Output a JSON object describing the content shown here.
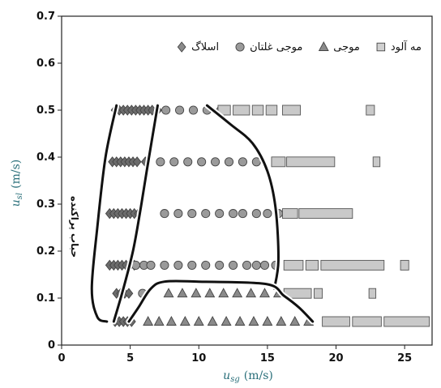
{
  "chart_data": {
    "type": "scatter",
    "title": "",
    "xlabel": "u_sg (m/s)",
    "ylabel": "u_sl (m/s)",
    "xlabel_parts": {
      "sym": "u",
      "sub": "sg",
      "unit": "(m/s)"
    },
    "ylabel_parts": {
      "sym": "u",
      "sub": "sl",
      "unit": "(m/s)"
    },
    "xlim": [
      0,
      27
    ],
    "ylim": [
      0,
      0.7
    ],
    "xticks": [
      0,
      5,
      10,
      15,
      20,
      25
    ],
    "yticks": [
      0,
      0.1,
      0.2,
      0.3,
      0.4,
      0.5,
      0.6,
      0.7
    ],
    "ytick_labels": [
      "0",
      "0.1",
      "0.2",
      "0.3",
      "0.4",
      "0.5",
      "0.6",
      "0.7"
    ],
    "grid": false,
    "legend_position": "top",
    "series": [
      {
        "name": "اسلاگ",
        "marker": "diamond",
        "color": "#6b6b6b",
        "points": [
          [
            3.9,
            0.05
          ],
          [
            4.2,
            0.05
          ],
          [
            4.5,
            0.05
          ],
          [
            4.8,
            0.05
          ],
          [
            5.1,
            0.05
          ],
          [
            4.0,
            0.11
          ],
          [
            4.3,
            0.11
          ],
          [
            4.6,
            0.11
          ],
          [
            4.9,
            0.11
          ],
          [
            3.5,
            0.17
          ],
          [
            3.8,
            0.17
          ],
          [
            4.1,
            0.17
          ],
          [
            4.4,
            0.17
          ],
          [
            4.7,
            0.17
          ],
          [
            5.0,
            0.17
          ],
          [
            5.3,
            0.17
          ],
          [
            3.5,
            0.28
          ],
          [
            3.8,
            0.28
          ],
          [
            4.1,
            0.28
          ],
          [
            4.4,
            0.28
          ],
          [
            4.7,
            0.28
          ],
          [
            5.0,
            0.28
          ],
          [
            5.3,
            0.28
          ],
          [
            5.6,
            0.28
          ],
          [
            3.7,
            0.39
          ],
          [
            4.0,
            0.39
          ],
          [
            4.3,
            0.39
          ],
          [
            4.6,
            0.39
          ],
          [
            4.9,
            0.39
          ],
          [
            5.2,
            0.39
          ],
          [
            5.5,
            0.39
          ],
          [
            6.1,
            0.39
          ],
          [
            3.9,
            0.5
          ],
          [
            4.2,
            0.5
          ],
          [
            4.5,
            0.5
          ],
          [
            4.8,
            0.5
          ],
          [
            5.1,
            0.5
          ],
          [
            5.4,
            0.5
          ],
          [
            5.7,
            0.5
          ],
          [
            6.0,
            0.5
          ],
          [
            6.3,
            0.5
          ],
          [
            6.6,
            0.5
          ],
          [
            7.0,
            0.5
          ]
        ]
      },
      {
        "name": "موجی غلتان",
        "marker": "circle",
        "color": "#9a9a9a",
        "points": [
          [
            5.9,
            0.11
          ],
          [
            5.4,
            0.17
          ],
          [
            6.0,
            0.17
          ],
          [
            6.5,
            0.17
          ],
          [
            7.5,
            0.17
          ],
          [
            8.5,
            0.17
          ],
          [
            9.5,
            0.17
          ],
          [
            10.5,
            0.17
          ],
          [
            11.5,
            0.17
          ],
          [
            12.5,
            0.17
          ],
          [
            13.5,
            0.17
          ],
          [
            14.2,
            0.17
          ],
          [
            14.8,
            0.17
          ],
          [
            15.6,
            0.17
          ],
          [
            7.5,
            0.28
          ],
          [
            8.5,
            0.28
          ],
          [
            9.5,
            0.28
          ],
          [
            10.5,
            0.28
          ],
          [
            11.5,
            0.28
          ],
          [
            12.5,
            0.28
          ],
          [
            13.2,
            0.28
          ],
          [
            14.2,
            0.28
          ],
          [
            15.0,
            0.28
          ],
          [
            15.8,
            0.28
          ],
          [
            7.2,
            0.39
          ],
          [
            8.2,
            0.39
          ],
          [
            9.2,
            0.39
          ],
          [
            10.2,
            0.39
          ],
          [
            11.2,
            0.39
          ],
          [
            12.2,
            0.39
          ],
          [
            13.2,
            0.39
          ],
          [
            14.2,
            0.39
          ],
          [
            7.6,
            0.5
          ],
          [
            8.6,
            0.5
          ],
          [
            9.6,
            0.5
          ],
          [
            10.6,
            0.5
          ],
          [
            11.6,
            0.5
          ]
        ]
      },
      {
        "name": "موجی",
        "marker": "triangle",
        "color": "#8a8a8a",
        "points": [
          [
            6.3,
            0.05
          ],
          [
            7.1,
            0.05
          ],
          [
            8.0,
            0.05
          ],
          [
            9.0,
            0.05
          ],
          [
            10.0,
            0.05
          ],
          [
            11.0,
            0.05
          ],
          [
            12.0,
            0.05
          ],
          [
            13.0,
            0.05
          ],
          [
            14.0,
            0.05
          ],
          [
            15.0,
            0.05
          ],
          [
            16.0,
            0.05
          ],
          [
            17.0,
            0.05
          ],
          [
            18.0,
            0.05
          ],
          [
            7.8,
            0.11
          ],
          [
            8.8,
            0.11
          ],
          [
            9.8,
            0.11
          ],
          [
            10.8,
            0.11
          ],
          [
            11.8,
            0.11
          ],
          [
            12.8,
            0.11
          ],
          [
            13.8,
            0.11
          ],
          [
            14.8,
            0.11
          ],
          [
            15.8,
            0.11
          ]
        ]
      },
      {
        "name": "مه آلود",
        "marker": "bar",
        "color": "#c9c9c9",
        "segments": [
          [
            19.0,
            21.0,
            0.05
          ],
          [
            21.2,
            23.3,
            0.05
          ],
          [
            23.5,
            26.8,
            0.05
          ],
          [
            16.2,
            18.2,
            0.11
          ],
          [
            18.4,
            19.0,
            0.11
          ],
          [
            22.4,
            22.9,
            0.11
          ],
          [
            16.2,
            17.6,
            0.17
          ],
          [
            17.8,
            18.7,
            0.17
          ],
          [
            18.9,
            23.5,
            0.17
          ],
          [
            24.7,
            25.3,
            0.17
          ],
          [
            16.1,
            17.2,
            0.28
          ],
          [
            17.3,
            21.2,
            0.28
          ],
          [
            15.3,
            16.3,
            0.39
          ],
          [
            16.4,
            19.9,
            0.39
          ],
          [
            22.7,
            23.2,
            0.39
          ],
          [
            11.4,
            12.3,
            0.5
          ],
          [
            12.5,
            13.7,
            0.5
          ],
          [
            13.9,
            14.7,
            0.5
          ],
          [
            14.9,
            15.7,
            0.5
          ],
          [
            16.1,
            17.4,
            0.5
          ],
          [
            22.2,
            22.8,
            0.5
          ]
        ]
      }
    ],
    "boundaries": [
      [
        [
          4.0,
          0.51
        ],
        [
          3.2,
          0.4
        ],
        [
          2.6,
          0.25
        ],
        [
          2.2,
          0.12
        ],
        [
          2.6,
          0.06
        ],
        [
          3.3,
          0.05
        ]
      ],
      [
        [
          3.8,
          0.05
        ],
        [
          4.5,
          0.12
        ],
        [
          5.2,
          0.2
        ],
        [
          5.7,
          0.28
        ],
        [
          6.2,
          0.37
        ],
        [
          7.0,
          0.51
        ]
      ],
      [
        [
          10.6,
          0.51
        ],
        [
          12.3,
          0.47
        ],
        [
          13.9,
          0.43
        ],
        [
          15.0,
          0.37
        ],
        [
          15.6,
          0.29
        ],
        [
          15.8,
          0.18
        ],
        [
          15.5,
          0.12
        ]
      ],
      [
        [
          4.9,
          0.05
        ],
        [
          5.6,
          0.08
        ],
        [
          6.5,
          0.12
        ],
        [
          7.5,
          0.135
        ],
        [
          10.0,
          0.135
        ],
        [
          14.9,
          0.13
        ],
        [
          16.2,
          0.105
        ],
        [
          17.3,
          0.08
        ],
        [
          18.3,
          0.05
        ]
      ]
    ]
  },
  "legend": [
    {
      "label": "اسلاگ",
      "marker": "diamond"
    },
    {
      "label": "موجی غلتان",
      "marker": "circle"
    },
    {
      "label": "موجی",
      "marker": "triangle"
    },
    {
      "label": "مه آلود",
      "marker": "square"
    }
  ],
  "annotations": [
    {
      "text": "حباب پراکنده"
    }
  ]
}
